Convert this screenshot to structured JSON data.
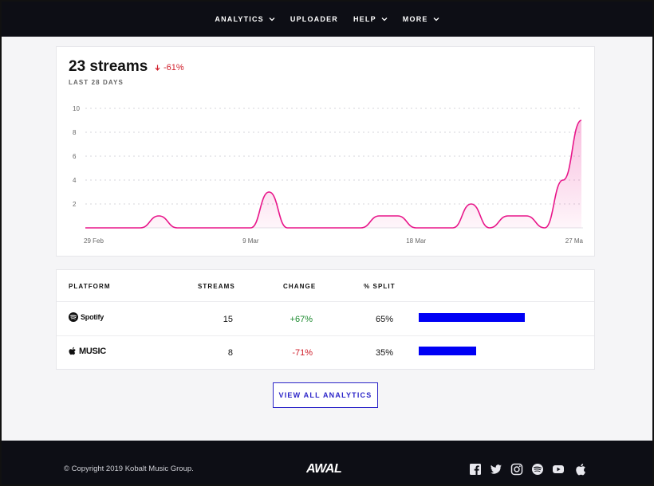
{
  "nav": {
    "items": [
      {
        "label": "ANALYTICS",
        "dropdown": true
      },
      {
        "label": "UPLOADER",
        "dropdown": false
      },
      {
        "label": "HELP",
        "dropdown": true
      },
      {
        "label": "MORE",
        "dropdown": true
      }
    ]
  },
  "summary": {
    "streams": "23 streams",
    "change": "-61%",
    "period": "LAST 28 DAYS"
  },
  "chart_data": {
    "type": "area",
    "x_ticks": [
      "29 Feb",
      "9 Mar",
      "18 Mar",
      "27 Ma"
    ],
    "y_ticks": [
      10,
      8,
      6,
      4,
      2
    ],
    "ylim": [
      0,
      10
    ],
    "grid": true,
    "series": [
      {
        "values": [
          0,
          0,
          0,
          0,
          1,
          0,
          0,
          0,
          0,
          0,
          3,
          0,
          0,
          0,
          0,
          0,
          1,
          1,
          0,
          0,
          0,
          2,
          0,
          1,
          1,
          0,
          4,
          9
        ]
      }
    ],
    "color": "#e8168a"
  },
  "table": {
    "headers": {
      "platform": "PLATFORM",
      "streams": "STREAMS",
      "change": "CHANGE",
      "split": "% SPLIT"
    },
    "rows": [
      {
        "platform": "Spotify",
        "streams": "15",
        "change": "+67%",
        "split": "65%",
        "split_value": 0.65,
        "change_dir": "up"
      },
      {
        "platform": "MUSIC",
        "streams": "8",
        "change": "-71%",
        "split": "35%",
        "split_value": 0.35,
        "change_dir": "down"
      }
    ]
  },
  "cta": {
    "label": "VIEW ALL ANALYTICS"
  },
  "footer": {
    "copyright": "© Copyright 2019 Kobalt Music Group.",
    "brand": "AWAL",
    "social": [
      "facebook-icon",
      "twitter-icon",
      "instagram-icon",
      "spotify-icon",
      "youtube-icon",
      "apple-icon"
    ]
  },
  "colors": {
    "accent": "#2b24c8",
    "bar": "#0000f5",
    "line": "#e8168a",
    "positive": "#1c8a2f",
    "negative": "#d0202c",
    "nav_bg": "#0d0e15"
  }
}
